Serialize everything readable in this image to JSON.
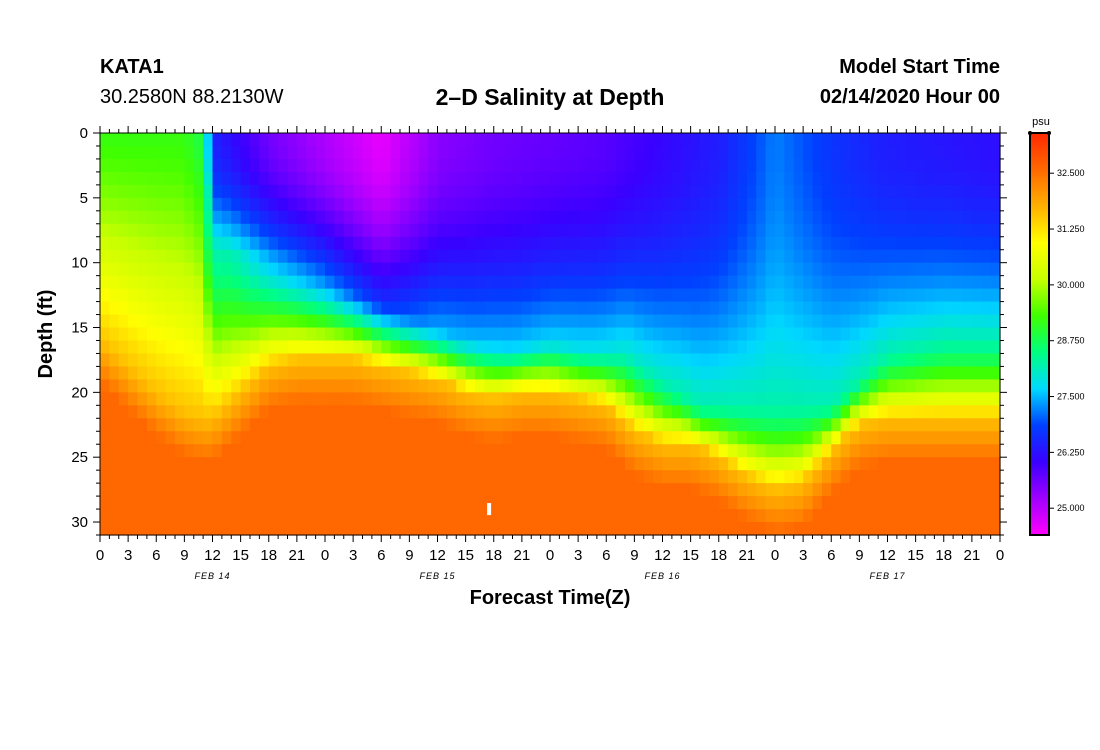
{
  "header": {
    "station": "KATA1",
    "coords": "30.2580N 88.2130W",
    "title": "2–D Salinity at Depth",
    "model_label": "Model Start Time",
    "model_value": "02/14/2020 Hour 00"
  },
  "chart_data": {
    "type": "heatmap",
    "title": "2–D Salinity at Depth",
    "xlabel": "Forecast Time(Z)",
    "ylabel": "Depth (ft)",
    "x_hours_range": [
      0,
      96
    ],
    "ylim": [
      0,
      31
    ],
    "y_ticks": [
      0,
      5,
      10,
      15,
      20,
      25,
      30
    ],
    "x_tick_labels": [
      "0",
      "3",
      "6",
      "9",
      "12",
      "15",
      "18",
      "21",
      "0",
      "3",
      "6",
      "9",
      "12",
      "15",
      "18",
      "21",
      "0",
      "3",
      "6",
      "9",
      "12",
      "15",
      "18",
      "21",
      "0",
      "3",
      "6",
      "9",
      "12",
      "15",
      "18",
      "21",
      "0"
    ],
    "date_labels": [
      {
        "label": "FEB 14",
        "hour": 12
      },
      {
        "label": "FEB 15",
        "hour": 36
      },
      {
        "label": "FEB 16",
        "hour": 60
      },
      {
        "label": "FEB 17",
        "hour": 84
      }
    ],
    "colorbar": {
      "unit": "psu",
      "range": [
        24.4,
        33.4
      ],
      "tick_values": [
        25.0,
        26.25,
        27.5,
        28.75,
        30.0,
        31.25,
        32.5
      ],
      "tick_labels": [
        "25.000",
        "26.250",
        "27.500",
        "28.750",
        "30.000",
        "31.250",
        "32.500"
      ],
      "colors": [
        "#ff00ff",
        "#a000ff",
        "#3a00ff",
        "#0040ff",
        "#00d8ff",
        "#00ff80",
        "#40ff00",
        "#c8ff00",
        "#ffff00",
        "#ffb000",
        "#ff6800",
        "#ff2800"
      ]
    },
    "halocline_depth_ft": {
      "hours": [
        0,
        3,
        6,
        9,
        11,
        12,
        15,
        18,
        21,
        24,
        27,
        30,
        33,
        36,
        39,
        42,
        45,
        48,
        51,
        54,
        57,
        60,
        63,
        66,
        69,
        72,
        75,
        78,
        81,
        84,
        87,
        90,
        93,
        96
      ],
      "depth": [
        16,
        18,
        20,
        21.5,
        22,
        22,
        20,
        18,
        17.5,
        17.5,
        17.5,
        18,
        18.5,
        19,
        20,
        20.5,
        20,
        20,
        20.5,
        21,
        23,
        24,
        24,
        25,
        26.5,
        27.5,
        27,
        24.5,
        22.5,
        22,
        22,
        22,
        22,
        22
      ]
    },
    "upper_layer_depth_ft": {
      "hours": [
        0,
        9,
        10,
        11,
        12,
        18,
        24,
        30,
        36,
        40,
        44,
        48,
        52,
        56,
        60,
        64,
        70,
        78,
        84,
        90,
        96
      ],
      "depth": [
        0,
        0,
        0,
        0,
        9,
        10,
        11,
        13,
        15,
        16,
        16.5,
        16,
        16.5,
        16.5,
        19,
        21,
        21,
        21,
        17,
        16,
        16
      ]
    },
    "surface_salinity_psu": {
      "hours": [
        0,
        9,
        11,
        12,
        18,
        24,
        30,
        36,
        42,
        48,
        54,
        60,
        66,
        70,
        72,
        78,
        84,
        96
      ],
      "values": [
        29.2,
        29.2,
        28.8,
        26.5,
        25.6,
        25.1,
        24.6,
        25.4,
        25.6,
        25.7,
        25.8,
        26.1,
        26.4,
        26.9,
        27.2,
        26.7,
        26.4,
        26.2
      ]
    },
    "bottom_salinity_psu": 32.6,
    "marker": {
      "hour": 41.5,
      "depth": 29
    }
  },
  "layout_colors": {
    "axis": "#000000",
    "background": "#ffffff"
  }
}
